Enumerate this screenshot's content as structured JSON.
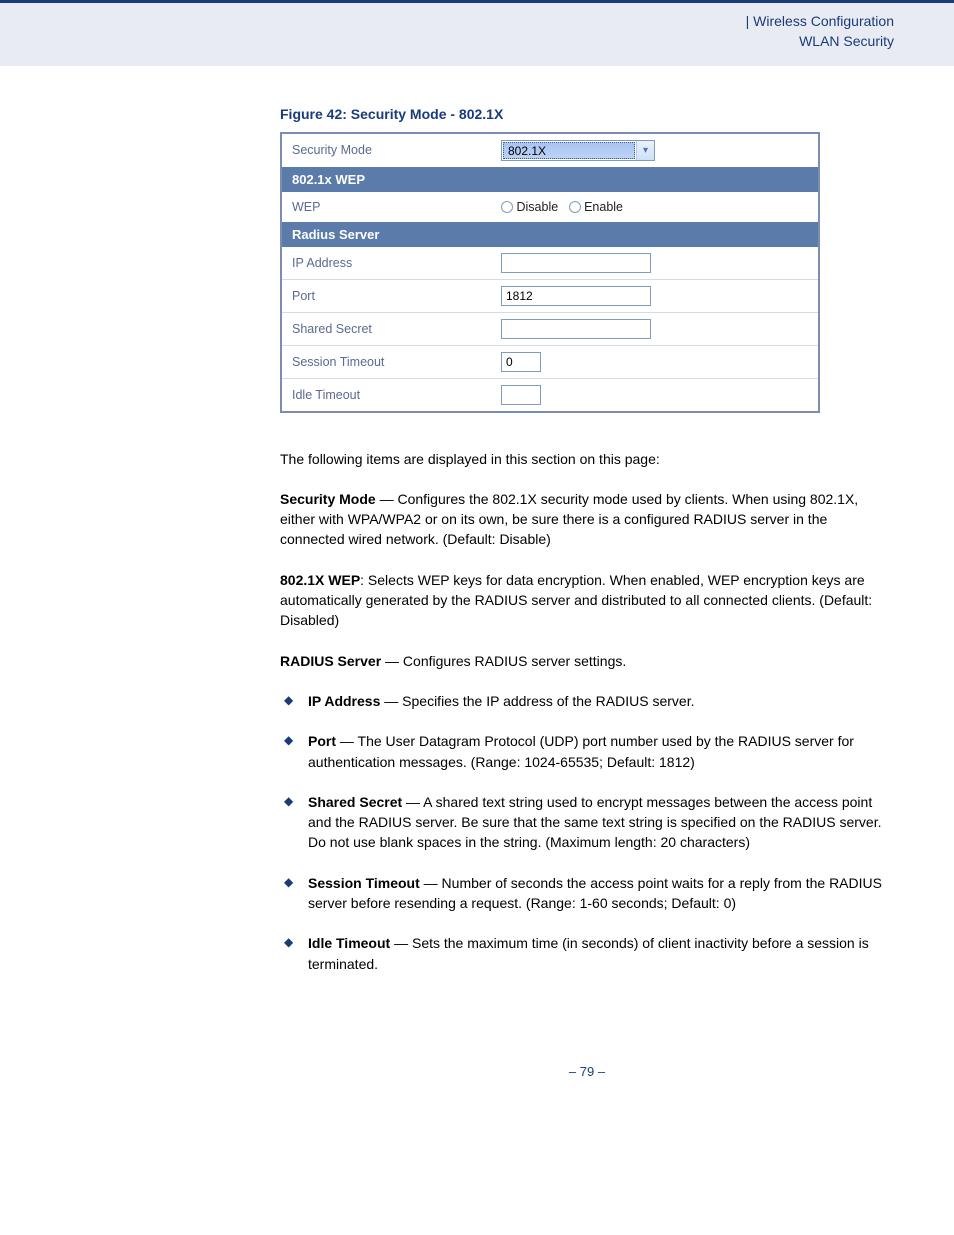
{
  "header": {
    "breadcrumb_prefix": "|  ",
    "line1": "Wireless Configuration",
    "line2": "WLAN Security"
  },
  "figure": {
    "caption": "Figure 42:  Security Mode - 802.1X",
    "rows": {
      "security_mode_label": "Security Mode",
      "security_mode_value": "802.1X",
      "section_wep": "802.1x WEP",
      "wep_label": "WEP",
      "wep_disable": "Disable",
      "wep_enable": "Enable",
      "section_radius": "Radius Server",
      "ip_label": "IP Address",
      "ip_value": "",
      "port_label": "Port",
      "port_value": "1812",
      "secret_label": "Shared Secret",
      "secret_value": "",
      "session_label": "Session Timeout",
      "session_value": "0",
      "idle_label": "Idle Timeout",
      "idle_value": ""
    }
  },
  "body": {
    "intro": "The following items are displayed in this section on this page:",
    "p1_bold": "Security Mode",
    "p1_text": " — Configures the 802.1X security mode used by clients. When using 802.1X, either with WPA/WPA2 or on its own, be sure there is a configured RADIUS server in the connected wired network. (Default: Disable)",
    "p2_bold": "802.1X WEP",
    "p2_text": ": Selects WEP keys for data encryption. When enabled, WEP encryption keys are automatically generated by the RADIUS server and distributed to all connected clients. (Default: Disabled)",
    "p3_bold": "RADIUS Server",
    "p3_text": " — Configures RADIUS server settings.",
    "bullets": [
      {
        "b": "IP Address",
        "t": " — Specifies the IP address of the RADIUS server."
      },
      {
        "b": "Port",
        "t": " — The User Datagram Protocol (UDP) port number used by the RADIUS server for authentication messages. (Range: 1024-65535; Default: 1812)"
      },
      {
        "b": "Shared Secret",
        "t": " — A shared text string used to encrypt messages between the access point and the RADIUS server. Be sure that the same text string is specified on the RADIUS server. Do not use blank spaces in the string. (Maximum length: 20 characters)"
      },
      {
        "b": "Session Timeout",
        "t": " — Number of seconds the access point waits for a reply from the RADIUS server before resending a request. (Range: 1-60 seconds; Default: 0)"
      },
      {
        "b": "Idle Timeout",
        "t": " — Sets the maximum time (in seconds) of client inactivity before a session is terminated."
      }
    ]
  },
  "footer": {
    "page": "–  79  –"
  }
}
